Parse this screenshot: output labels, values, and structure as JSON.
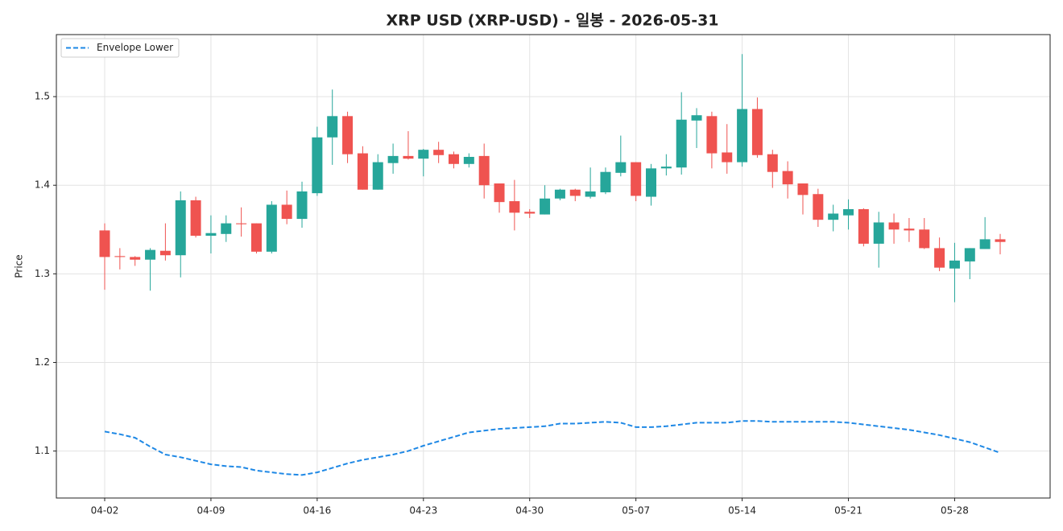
{
  "chart_data": {
    "type": "candlestick",
    "title": "XRP USD (XRP-USD) - 일봉 - 2026-05-31",
    "y_label": "Price",
    "categories": [
      "04-02",
      null,
      null,
      null,
      null,
      null,
      null,
      "04-09",
      null,
      null,
      null,
      null,
      null,
      null,
      "04-16",
      null,
      null,
      null,
      null,
      null,
      null,
      "04-23",
      null,
      null,
      null,
      null,
      null,
      null,
      "04-30",
      null,
      null,
      null,
      null,
      null,
      null,
      "05-07",
      null,
      null,
      null,
      null,
      null,
      null,
      "05-14",
      null,
      null,
      null,
      null,
      null,
      null,
      "05-21",
      null,
      null,
      null,
      null,
      null,
      null,
      "05-28",
      null,
      null,
      null
    ],
    "open": [
      1.349,
      1.32,
      1.319,
      1.316,
      1.326,
      1.321,
      1.383,
      1.343,
      1.345,
      1.357,
      1.357,
      1.325,
      1.378,
      1.362,
      1.391,
      1.454,
      1.478,
      1.436,
      1.395,
      1.425,
      1.433,
      1.43,
      1.44,
      1.435,
      1.424,
      1.433,
      1.402,
      1.382,
      1.37,
      1.367,
      1.385,
      1.395,
      1.387,
      1.392,
      1.414,
      1.426,
      1.387,
      1.419,
      1.42,
      1.473,
      1.478,
      1.437,
      1.426,
      1.486,
      1.435,
      1.416,
      1.402,
      1.39,
      1.361,
      1.366,
      1.373,
      1.334,
      1.358,
      1.351,
      1.35,
      1.329,
      1.306,
      1.314,
      1.328,
      1.339
    ],
    "high": [
      1.357,
      1.329,
      1.32,
      1.329,
      1.357,
      1.393,
      1.387,
      1.366,
      1.366,
      1.375,
      1.357,
      1.382,
      1.394,
      1.404,
      1.466,
      1.508,
      1.483,
      1.444,
      1.435,
      1.447,
      1.461,
      1.441,
      1.449,
      1.438,
      1.436,
      1.447,
      1.402,
      1.406,
      1.373,
      1.4,
      1.396,
      1.396,
      1.42,
      1.42,
      1.456,
      1.426,
      1.424,
      1.435,
      1.505,
      1.487,
      1.483,
      1.469,
      1.548,
      1.499,
      1.44,
      1.427,
      1.402,
      1.396,
      1.378,
      1.384,
      1.374,
      1.37,
      1.368,
      1.363,
      1.363,
      1.341,
      1.335,
      1.329,
      1.364,
      1.345
    ],
    "low": [
      1.282,
      1.305,
      1.309,
      1.281,
      1.315,
      1.296,
      1.341,
      1.323,
      1.336,
      1.342,
      1.323,
      1.323,
      1.356,
      1.352,
      1.388,
      1.423,
      1.425,
      1.395,
      1.395,
      1.413,
      1.429,
      1.41,
      1.425,
      1.419,
      1.42,
      1.385,
      1.369,
      1.349,
      1.363,
      1.367,
      1.383,
      1.382,
      1.385,
      1.39,
      1.41,
      1.382,
      1.377,
      1.411,
      1.412,
      1.442,
      1.419,
      1.413,
      1.421,
      1.431,
      1.397,
      1.385,
      1.367,
      1.353,
      1.348,
      1.35,
      1.331,
      1.307,
      1.334,
      1.336,
      1.328,
      1.303,
      1.268,
      1.294,
      1.328,
      1.322
    ],
    "close": [
      1.319,
      1.319,
      1.316,
      1.327,
      1.321,
      1.383,
      1.343,
      1.346,
      1.357,
      1.356,
      1.325,
      1.378,
      1.362,
      1.393,
      1.454,
      1.478,
      1.435,
      1.395,
      1.426,
      1.433,
      1.43,
      1.44,
      1.434,
      1.424,
      1.432,
      1.4,
      1.381,
      1.369,
      1.368,
      1.385,
      1.395,
      1.388,
      1.393,
      1.415,
      1.426,
      1.388,
      1.419,
      1.421,
      1.474,
      1.479,
      1.436,
      1.426,
      1.486,
      1.434,
      1.415,
      1.401,
      1.389,
      1.361,
      1.368,
      1.373,
      1.334,
      1.358,
      1.35,
      1.349,
      1.329,
      1.307,
      1.315,
      1.329,
      1.339,
      1.336
    ],
    "up_color": "#26a69a",
    "down_color": "#ef5350",
    "overlays": [
      {
        "name": "Envelope Lower",
        "color": "#1e88e5",
        "dashed": true,
        "values": [
          1.122,
          1.119,
          1.115,
          1.105,
          1.096,
          1.093,
          1.089,
          1.085,
          1.083,
          1.082,
          1.078,
          1.076,
          1.074,
          1.073,
          1.076,
          1.081,
          1.086,
          1.09,
          1.093,
          1.096,
          1.1,
          1.106,
          1.111,
          1.116,
          1.121,
          1.123,
          1.125,
          1.126,
          1.127,
          1.128,
          1.131,
          1.131,
          1.132,
          1.133,
          1.132,
          1.127,
          1.127,
          1.128,
          1.13,
          1.132,
          1.132,
          1.132,
          1.134,
          1.134,
          1.133,
          1.133,
          1.133,
          1.133,
          1.133,
          1.132,
          1.13,
          1.128,
          1.126,
          1.124,
          1.121,
          1.118,
          1.114,
          1.11,
          1.104,
          1.098
        ]
      }
    ],
    "ylim": [
      1.047,
      1.57
    ],
    "yticks": [
      1.1,
      1.2,
      1.3,
      1.4,
      1.5
    ],
    "grid": true,
    "legend": "upper left"
  }
}
